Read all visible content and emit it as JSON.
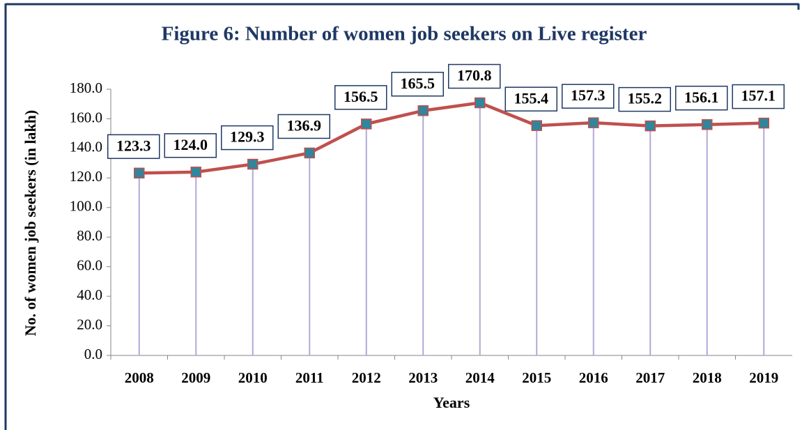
{
  "chart_data": {
    "type": "line",
    "title": "Figure 6: Number of women job seekers on Live register",
    "y_label": "No. of women job seekers (in lakh)",
    "x_label": "Years",
    "categories": [
      "2008",
      "2009",
      "2010",
      "2011",
      "2012",
      "2013",
      "2014",
      "2015",
      "2016",
      "2017",
      "2018",
      "2019"
    ],
    "series": [
      {
        "name": "Women job seekers",
        "color": "#c0504d",
        "marker_color": "#31859c",
        "values": [
          123.3,
          124.0,
          129.3,
          136.9,
          156.5,
          165.5,
          170.8,
          155.4,
          157.3,
          155.2,
          156.1,
          157.1
        ],
        "value_labels": [
          "123.3",
          "124.0",
          "129.3",
          "136.9",
          "156.5",
          "165.5",
          "170.8",
          "155.4",
          "157.3",
          "155.2",
          "156.1",
          "157.1"
        ]
      }
    ],
    "ylim": [
      0,
      180
    ],
    "yticks": [
      {
        "value": 0,
        "label": "0.0"
      },
      {
        "value": 20,
        "label": "20.0"
      },
      {
        "value": 40,
        "label": "40.0"
      },
      {
        "value": 60,
        "label": "60.0"
      },
      {
        "value": 80,
        "label": "80.0"
      },
      {
        "value": 100,
        "label": "100.0"
      },
      {
        "value": 120,
        "label": "120.0"
      },
      {
        "value": 140,
        "label": "140.0"
      },
      {
        "value": 160,
        "label": "160.0"
      },
      {
        "value": 180,
        "label": "180.0"
      }
    ],
    "drop_lines": true
  }
}
